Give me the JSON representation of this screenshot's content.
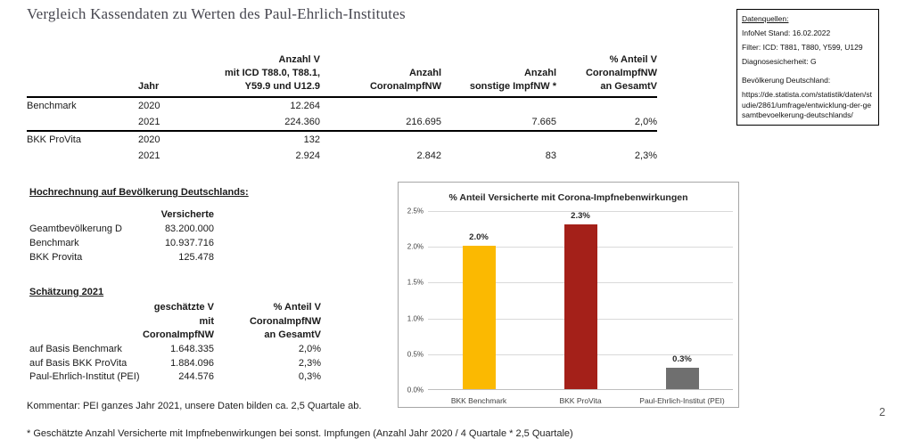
{
  "page": {
    "title": "Vergleich Kassendaten zu Werten des Paul-Ehrlich-Institutes",
    "comment": "Kommentar: PEI ganzes Jahr 2021, unsere Daten bilden ca. 2,5 Quartale ab.",
    "footnote": "* Geschätzte Anzahl Versicherte mit Impfnebenwirkungen bei sonst. Impfungen (Anzahl Jahr 2020 / 4 Quartale * 2,5 Quartale)",
    "page_number": "2"
  },
  "datenquellen": {
    "heading": "Datenquellen:",
    "lines": [
      "InfoNet Stand: 16.02.2022",
      "Filter: ICD: T881, T880, Y599, U129",
      "Diagnosesicherheit: G"
    ],
    "bev_heading": "Bevölkerung Deutschland:",
    "bev_url": "https://de.statista.com/statistik/daten/studie/2861/umfrage/entwicklung-der-gesamtbevoelkerung-deutschlands/"
  },
  "main_table": {
    "headers": {
      "label": "",
      "jahr": "Jahr",
      "icd": "Anzahl V\nmit ICD T88.0, T88.1,\nY59.9 und U12.9",
      "corona": "Anzahl\nCoronaImpfNW",
      "sonstige": "Anzahl\nsonstige ImpfNW *",
      "anteil": "% Anteil V\nCoronaImpfNW\nan GesamtV"
    },
    "groups": [
      {
        "name": "Benchmark",
        "rows": [
          {
            "jahr": "2020",
            "icd": "12.264",
            "corona": "",
            "sonstige": "",
            "anteil": ""
          },
          {
            "jahr": "2021",
            "icd": "224.360",
            "corona": "216.695",
            "sonstige": "7.665",
            "anteil": "2,0%"
          }
        ]
      },
      {
        "name": "BKK ProVita",
        "rows": [
          {
            "jahr": "2020",
            "icd": "132",
            "corona": "",
            "sonstige": "",
            "anteil": ""
          },
          {
            "jahr": "2021",
            "icd": "2.924",
            "corona": "2.842",
            "sonstige": "83",
            "anteil": "2,3%"
          }
        ]
      }
    ]
  },
  "hochrechnung": {
    "heading": "Hochrechnung auf Bevölkerung Deutschlands:",
    "col_header": "Versicherte",
    "rows": [
      {
        "label": "Geamtbevölkerung D",
        "value": "83.200.000"
      },
      {
        "label": "Benchmark",
        "value": "10.937.716"
      },
      {
        "label": "BKK Provita",
        "value": "125.478"
      }
    ]
  },
  "schaetzung": {
    "heading": "Schätzung 2021",
    "col1_header": "geschätzte V\nmit\nCoronaImpfNW",
    "col2_header": "% Anteil V\nCoronaImpfNW\nan GesamtV",
    "rows": [
      {
        "label": "auf Basis Benchmark",
        "v1": "1.648.335",
        "v2": "2,0%"
      },
      {
        "label": "auf Basis BKK ProVita",
        "v1": "1.884.096",
        "v2": "2,3%"
      },
      {
        "label": "Paul-Ehrlich-Institut (PEI)",
        "v1": "244.576",
        "v2": "0,3%"
      }
    ]
  },
  "chart_data": {
    "type": "bar",
    "title": "% Anteil Versicherte mit Corona-Impfnebenwirkungen",
    "categories": [
      "BKK Benchmark",
      "BKK ProVita",
      "Paul-Ehrlich-Institut (PEI)"
    ],
    "values": [
      2.0,
      2.3,
      0.3
    ],
    "value_labels": [
      "2.0%",
      "2.3%",
      "0.3%"
    ],
    "bar_colors": [
      "#FBB901",
      "#A42019",
      "#6F6F6F"
    ],
    "ylim": [
      0,
      2.5
    ],
    "ytick_step": 0.5,
    "ytick_labels": [
      "0.0%",
      "0.5%",
      "1.0%",
      "1.5%",
      "2.0%",
      "2.5%"
    ],
    "grid": true,
    "legend": "none",
    "xlabel": "",
    "ylabel": ""
  }
}
